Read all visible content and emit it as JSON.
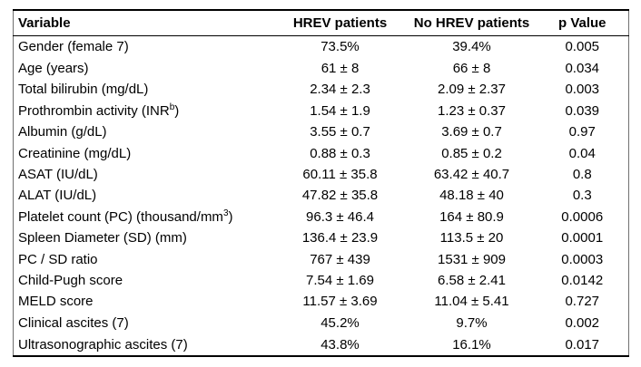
{
  "table": {
    "columns": [
      {
        "label": "Variable",
        "align": "left"
      },
      {
        "label": "HREV patients",
        "align": "center"
      },
      {
        "label": "No HREV patients",
        "align": "center"
      },
      {
        "label": "p Value",
        "align": "center"
      }
    ],
    "rows": [
      {
        "variable": "Gender (female 7)",
        "hrev": "73.5%",
        "no_hrev": "39.4%",
        "p_value": "0.005"
      },
      {
        "variable": "Age (years)",
        "hrev": "61 ± 8",
        "no_hrev": "66 ± 8",
        "p_value": "0.034"
      },
      {
        "variable": "Total bilirubin (mg/dL)",
        "hrev": "2.34 ± 2.3",
        "no_hrev": "2.09 ± 2.37",
        "p_value": "0.003"
      },
      {
        "variable": "Prothrombin activity (INR^b^)",
        "hrev": "1.54 ± 1.9",
        "no_hrev": "1.23 ± 0.37",
        "p_value": "0.039"
      },
      {
        "variable": "Albumin (g/dL)",
        "hrev": "3.55 ± 0.7",
        "no_hrev": "3.69 ± 0.7",
        "p_value": "0.97"
      },
      {
        "variable": "Creatinine (mg/dL)",
        "hrev": "0.88 ± 0.3",
        "no_hrev": "0.85 ± 0.2",
        "p_value": "0.04"
      },
      {
        "variable": "ASAT (IU/dL)",
        "hrev": "60.11 ± 35.8",
        "no_hrev": "63.42 ± 40.7",
        "p_value": "0.8"
      },
      {
        "variable": "ALAT (IU/dL)",
        "hrev": "47.82 ± 35.8",
        "no_hrev": "48.18 ± 40",
        "p_value": "0.3"
      },
      {
        "variable": "Platelet count (PC) (thousand/mm^3^)",
        "hrev": "96.3 ± 46.4",
        "no_hrev": "164 ± 80.9",
        "p_value": "0.0006"
      },
      {
        "variable": "Spleen Diameter (SD) (mm)",
        "hrev": "136.4 ± 23.9",
        "no_hrev": "113.5 ± 20",
        "p_value": "0.0001"
      },
      {
        "variable": "PC / SD ratio",
        "hrev": "767 ± 439",
        "no_hrev": "1531 ± 909",
        "p_value": "0.0003"
      },
      {
        "variable": "Child-Pugh score",
        "hrev": "7.54 ± 1.69",
        "no_hrev": "6.58 ± 2.41",
        "p_value": "0.0142"
      },
      {
        "variable": "MELD score",
        "hrev": "11.57 ± 3.69",
        "no_hrev": "11.04 ± 5.41",
        "p_value": "0.727"
      },
      {
        "variable": "Clinical ascites (7)",
        "hrev": "45.2%",
        "no_hrev": "9.7%",
        "p_value": "0.002"
      },
      {
        "variable": "Ultrasonographic ascites (7)",
        "hrev": "43.8%",
        "no_hrev": "16.1%",
        "p_value": "0.017"
      }
    ]
  },
  "styles": {
    "background": "#ffffff",
    "text_color": "#000000",
    "rule_color": "#000000"
  }
}
